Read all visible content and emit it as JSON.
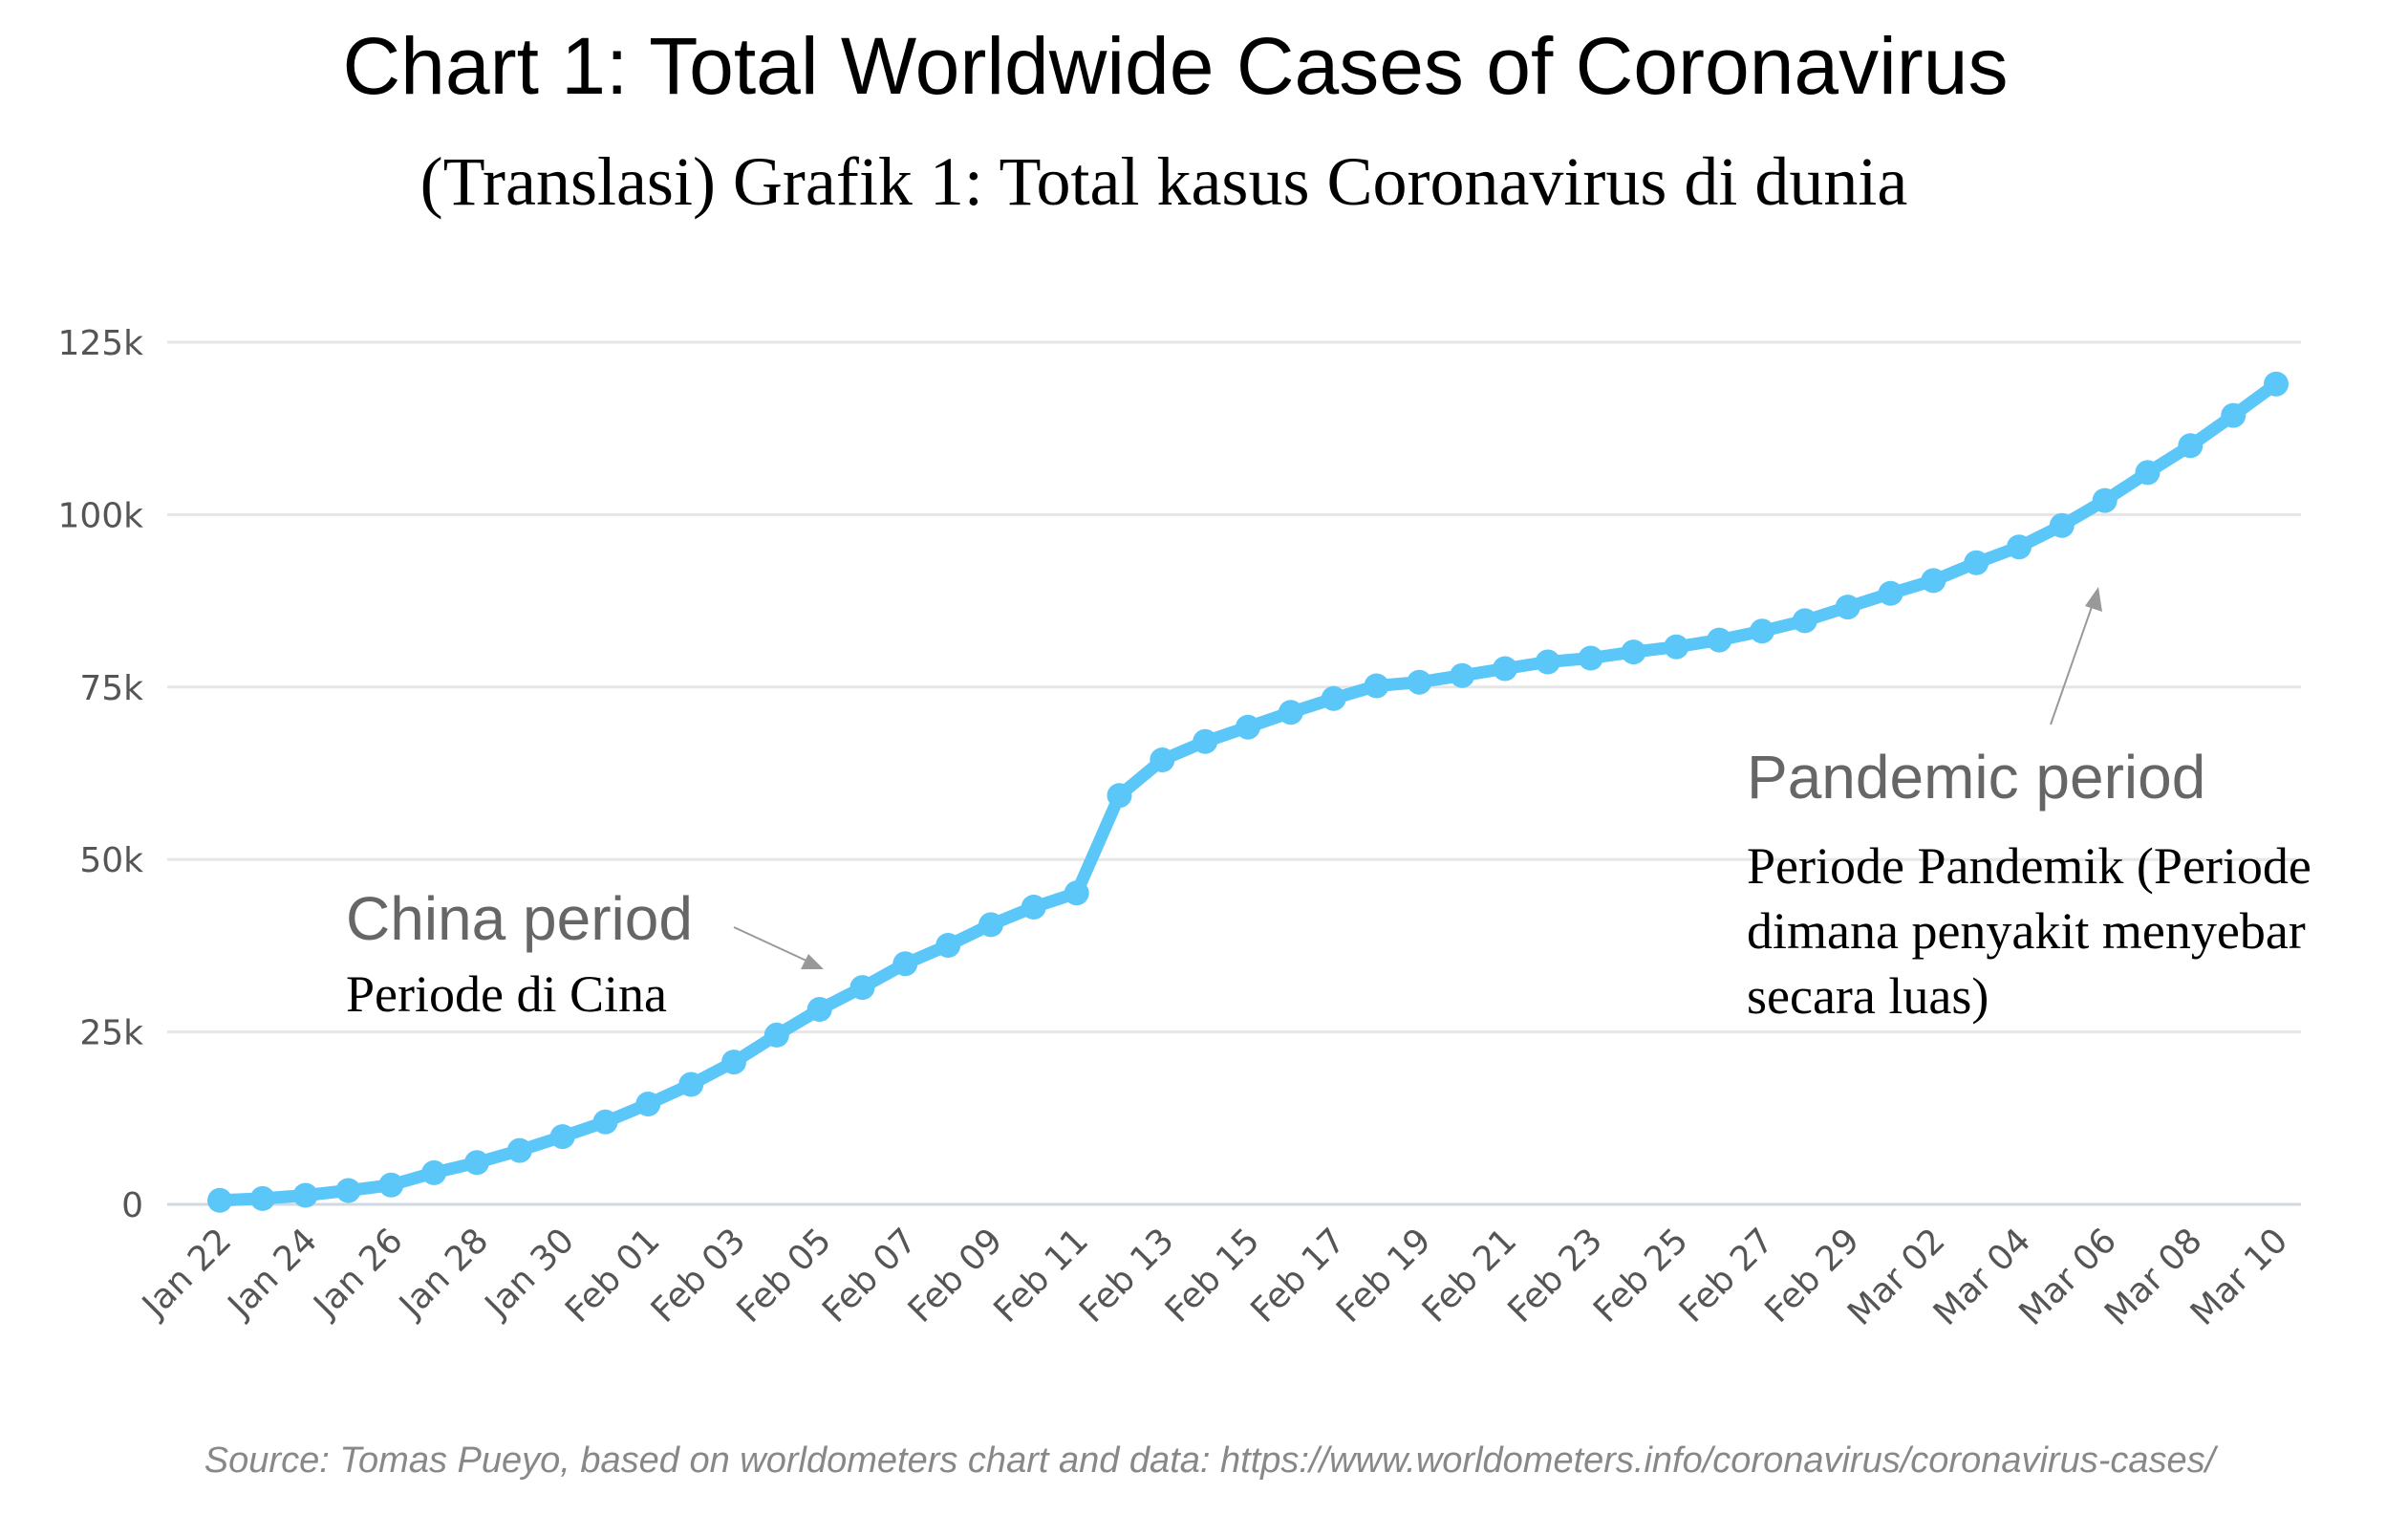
{
  "title": "Chart 1: Total Worldwide Cases of Coronavirus",
  "subtitle": "(Translasi) Grafik 1: Total kasus Coronavirus di dunia",
  "source": "Source: Tomas Pueyo, based on worldometers chart and data: https://www.worldometers.info/coronavirus/coronavirus-cases/",
  "annotations": {
    "china_en": "China period",
    "china_id": "Periode di Cina",
    "pandemic_en": "Pandemic period",
    "pandemic_id_lines": [
      "Periode Pandemik (Periode",
      "dimana penyakit menyebar",
      "secara luas)"
    ]
  },
  "colors": {
    "line": "#5bc6f8",
    "grid": "#e6e6e6",
    "tick_text": "#555555"
  },
  "chart_data": {
    "type": "line",
    "title": "Chart 1: Total Worldwide Cases of Coronavirus",
    "xlabel": "",
    "ylabel": "",
    "ylim": [
      0,
      125000
    ],
    "yticks": [
      0,
      25000,
      50000,
      75000,
      100000,
      125000
    ],
    "ytick_labels": [
      "0",
      "25k",
      "50k",
      "75k",
      "100k",
      "125k"
    ],
    "grid": true,
    "legend": "none",
    "x": [
      "Jan 22",
      "Jan 23",
      "Jan 24",
      "Jan 25",
      "Jan 26",
      "Jan 27",
      "Jan 28",
      "Jan 29",
      "Jan 30",
      "Jan 31",
      "Feb 01",
      "Feb 02",
      "Feb 03",
      "Feb 04",
      "Feb 05",
      "Feb 06",
      "Feb 07",
      "Feb 08",
      "Feb 09",
      "Feb 10",
      "Feb 11",
      "Feb 12",
      "Feb 13",
      "Feb 14",
      "Feb 15",
      "Feb 16",
      "Feb 17",
      "Feb 18",
      "Feb 19",
      "Feb 20",
      "Feb 21",
      "Feb 22",
      "Feb 23",
      "Feb 24",
      "Feb 25",
      "Feb 26",
      "Feb 27",
      "Feb 28",
      "Feb 29",
      "Mar 01",
      "Mar 02",
      "Mar 03",
      "Mar 04",
      "Mar 05",
      "Mar 06",
      "Mar 07",
      "Mar 08",
      "Mar 09",
      "Mar 10"
    ],
    "xtick_labels": [
      "Jan 22",
      "Jan 24",
      "Jan 26",
      "Jan 28",
      "Jan 30",
      "Feb 01",
      "Feb 03",
      "Feb 05",
      "Feb 07",
      "Feb 09",
      "Feb 11",
      "Feb 13",
      "Feb 15",
      "Feb 17",
      "Feb 19",
      "Feb 21",
      "Feb 23",
      "Feb 25",
      "Feb 27",
      "Feb 29",
      "Mar 02",
      "Mar 04",
      "Mar 06",
      "Mar 08",
      "Mar 10"
    ],
    "series": [
      {
        "values": [
          580,
          845,
          1317,
          2015,
          2800,
          4581,
          6058,
          7813,
          9823,
          11950,
          14553,
          17391,
          20630,
          24545,
          28266,
          31439,
          34876,
          37552,
          40553,
          43099,
          45134,
          59287,
          64438,
          67100,
          69197,
          71329,
          73332,
          75184,
          75700,
          76677,
          77673,
          78651,
          79205,
          80087,
          80828,
          81820,
          83112,
          84615,
          86604,
          88585,
          90443,
          93016,
          95314,
          98425,
          102050,
          106099,
          109991,
          114381,
          118948
        ]
      }
    ]
  }
}
